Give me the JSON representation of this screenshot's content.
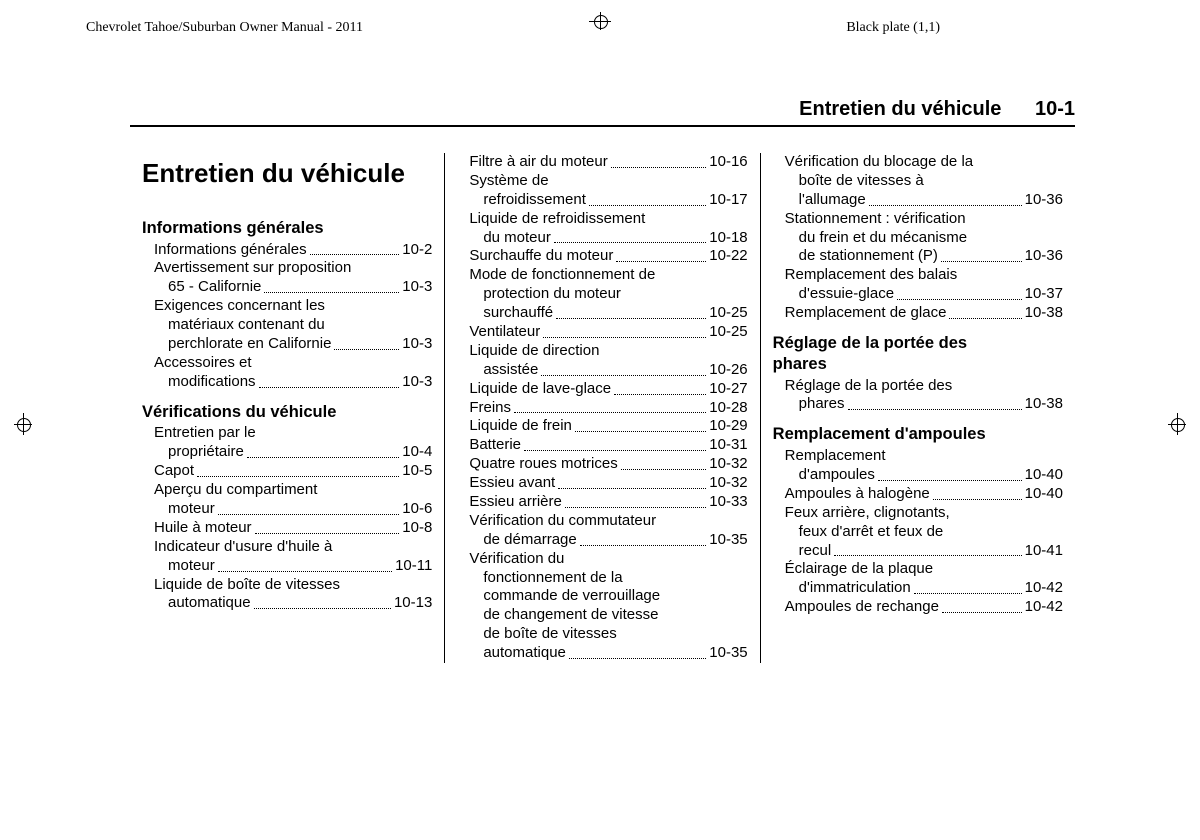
{
  "header": {
    "left": "Chevrolet Tahoe/Suburban Owner Manual - 2011",
    "right": "Black plate (1,1)"
  },
  "page_header": {
    "title": "Entretien du véhicule",
    "number": "10-1"
  },
  "title": "Entretien du véhicule",
  "sections": [
    {
      "heading": "Informations générales",
      "entries": [
        {
          "label": "Informations générales",
          "page": "10-2"
        },
        {
          "label_lines": [
            "Avertissement sur proposition",
            "65 - Californie"
          ],
          "page": "10-3"
        },
        {
          "label_lines": [
            "Exigences concernant les",
            "matériaux contenant du",
            "perchlorate en Californie"
          ],
          "page": "10-3"
        },
        {
          "label_lines": [
            "Accessoires et",
            "modifications"
          ],
          "page": "10-3"
        }
      ]
    },
    {
      "heading": "Vérifications du véhicule",
      "entries": [
        {
          "label_lines": [
            "Entretien par le",
            "propriétaire"
          ],
          "page": "10-4"
        },
        {
          "label": "Capot",
          "page": "10-5"
        },
        {
          "label_lines": [
            "Aperçu du compartiment",
            "moteur"
          ],
          "page": "10-6"
        },
        {
          "label": "Huile à moteur",
          "page": "10-8"
        },
        {
          "label_lines": [
            "Indicateur d'usure d'huile à",
            "moteur"
          ],
          "page": "10-11"
        },
        {
          "label_lines": [
            "Liquide de boîte de vitesses",
            "automatique"
          ],
          "page": "10-13"
        }
      ]
    }
  ],
  "col2_entries": [
    {
      "label": "Filtre à air du moteur",
      "page": "10-16"
    },
    {
      "label_lines": [
        "Système de",
        "refroidissement"
      ],
      "page": "10-17"
    },
    {
      "label_lines": [
        "Liquide de refroidissement",
        "du moteur"
      ],
      "page": "10-18"
    },
    {
      "label": "Surchauffe du moteur",
      "page": "10-22"
    },
    {
      "label_lines": [
        "Mode de fonctionnement de",
        "protection du moteur",
        "surchauffé"
      ],
      "page": "10-25"
    },
    {
      "label": "Ventilateur",
      "page": "10-25"
    },
    {
      "label_lines": [
        "Liquide de direction",
        "assistée"
      ],
      "page": "10-26"
    },
    {
      "label": "Liquide de lave-glace",
      "page": "10-27"
    },
    {
      "label": "Freins",
      "page": "10-28"
    },
    {
      "label": "Liquide de frein",
      "page": "10-29"
    },
    {
      "label": "Batterie",
      "page": "10-31"
    },
    {
      "label": "Quatre roues motrices",
      "page": "10-32"
    },
    {
      "label": "Essieu avant",
      "page": "10-32"
    },
    {
      "label": "Essieu arrière",
      "page": "10-33"
    },
    {
      "label_lines": [
        "Vérification du commutateur",
        "de démarrage"
      ],
      "page": "10-35"
    },
    {
      "label_lines": [
        "Vérification du",
        "fonctionnement de la",
        "commande de verrouillage",
        "de changement de vitesse",
        "de boîte de vitesses",
        "automatique"
      ],
      "page": "10-35"
    }
  ],
  "col3_top_entries": [
    {
      "label_lines": [
        "Vérification du blocage de la",
        "boîte de vitesses à",
        "l'allumage"
      ],
      "page": "10-36"
    },
    {
      "label_lines": [
        "Stationnement : vérification",
        "du frein et du mécanisme",
        "de stationnement (P)"
      ],
      "page": "10-36"
    },
    {
      "label_lines": [
        "Remplacement des balais",
        "d'essuie-glace"
      ],
      "page": "10-37"
    },
    {
      "label": "Remplacement de glace",
      "page": "10-38"
    }
  ],
  "col3_sections": [
    {
      "heading": "Réglage de la portée des phares",
      "heading_lines": [
        "Réglage de la portée des",
        "phares"
      ],
      "entries": [
        {
          "label_lines": [
            "Réglage de la portée des",
            "phares"
          ],
          "page": "10-38"
        }
      ]
    },
    {
      "heading": "Remplacement d'ampoules",
      "entries": [
        {
          "label_lines": [
            "Remplacement",
            "d'ampoules"
          ],
          "page": "10-40"
        },
        {
          "label": "Ampoules à halogène",
          "page": "10-40"
        },
        {
          "label_lines": [
            "Feux arrière, clignotants,",
            "feux d'arrêt et feux de",
            "recul"
          ],
          "page": "10-41"
        },
        {
          "label_lines": [
            "Éclairage de la plaque",
            "d'immatriculation"
          ],
          "page": "10-42"
        },
        {
          "label": "Ampoules de rechange",
          "page": "10-42"
        }
      ]
    }
  ]
}
